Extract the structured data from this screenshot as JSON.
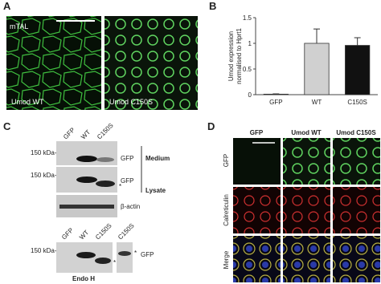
{
  "panel_a": {
    "label": "A",
    "region": "mTAL",
    "images": [
      "Umod WT",
      "Umod C150S"
    ]
  },
  "chart_data": {
    "type": "bar",
    "panel_label": "B",
    "ylabel": [
      "Umod expression",
      "normalised to Hprt1"
    ],
    "categories": [
      "GFP",
      "WT",
      "C150S"
    ],
    "values": [
      0.01,
      1.0,
      0.96
    ],
    "errors": [
      0.005,
      0.28,
      0.15
    ],
    "colors": [
      "#ffffff",
      "#d0d0d0",
      "#111111"
    ],
    "ylim": [
      0,
      1.5
    ],
    "yticks": [
      0,
      0.5,
      1,
      1.5
    ]
  },
  "panel_c": {
    "label": "C",
    "blot1": {
      "lanes": [
        "GFP",
        "WT",
        "C150S"
      ],
      "markers": [
        "150 kDa-",
        "150 kDa-"
      ],
      "bands": [
        "GFP",
        "GFP",
        "β-actin"
      ],
      "groups": [
        "Medium",
        "Lysate"
      ],
      "asterisk": "*"
    },
    "blot2": {
      "lanes": [
        "GFP",
        "WT",
        "C150S",
        "C150S"
      ],
      "marker": "150 kDa-",
      "band": "GFP",
      "asterisks": [
        "*",
        "*"
      ],
      "caption": "Endo H"
    }
  },
  "panel_d": {
    "label": "D",
    "columns": [
      "GFP",
      "Umod WT",
      "Umod C150S"
    ],
    "rows": [
      "GFP",
      "Calreticulin",
      "Merge"
    ]
  }
}
